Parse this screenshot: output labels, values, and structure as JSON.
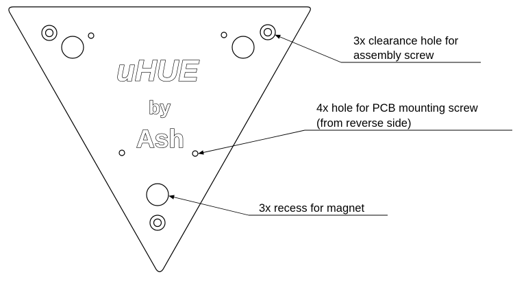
{
  "engraving": {
    "line1": "uHUE",
    "line2": "by",
    "line3": "Ash"
  },
  "callouts": {
    "clearance": {
      "line1": "3x clearance hole for",
      "line2": "assembly screw"
    },
    "pcb": {
      "line1": "4x hole for PCB mounting screw",
      "line2": "(from reverse side)"
    },
    "magnet": {
      "line1": "3x recess for magnet"
    }
  },
  "colors": {
    "stroke": "#000000",
    "background": "#ffffff"
  }
}
